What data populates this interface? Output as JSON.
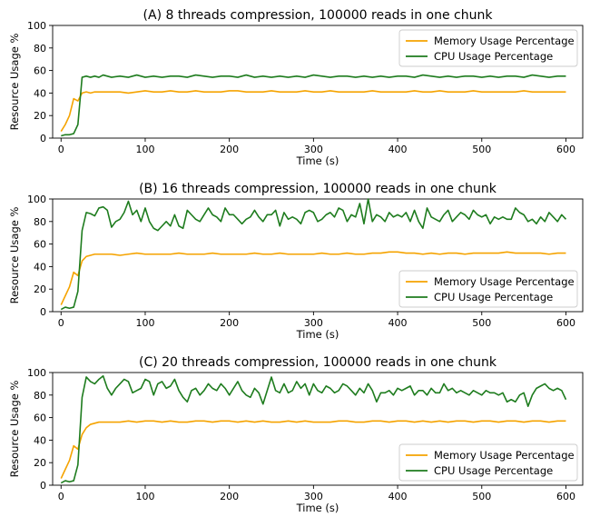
{
  "colors": {
    "memory": "#f5a300",
    "cpu": "#1e7c1e"
  },
  "chart_data": [
    {
      "type": "line",
      "title": "(A) 8 threads compression, 100000 reads in one chunk",
      "xlabel": "Time (s)",
      "ylabel": "Resource Usage %",
      "xlim": [
        -10,
        620
      ],
      "ylim": [
        0,
        100
      ],
      "xticks": [
        0,
        100,
        200,
        300,
        400,
        500,
        600
      ],
      "yticks": [
        0,
        20,
        40,
        60,
        80,
        100
      ],
      "grid": false,
      "legend": "top-right",
      "series": [
        {
          "name": "Memory Usage Percentage",
          "color": "memory",
          "x": [
            0,
            5,
            10,
            15,
            20,
            25,
            30,
            35,
            40,
            45,
            50,
            60,
            70,
            80,
            90,
            100,
            110,
            120,
            130,
            140,
            150,
            160,
            170,
            180,
            190,
            200,
            210,
            220,
            230,
            240,
            250,
            260,
            270,
            280,
            290,
            300,
            310,
            320,
            330,
            340,
            350,
            360,
            370,
            380,
            390,
            400,
            410,
            420,
            430,
            440,
            450,
            460,
            470,
            480,
            490,
            500,
            510,
            520,
            530,
            540,
            550,
            560,
            570,
            580,
            590,
            600
          ],
          "y": [
            6,
            12,
            20,
            35,
            33,
            40,
            41,
            40,
            41,
            41,
            41,
            41,
            41,
            40,
            41,
            42,
            41,
            41,
            42,
            41,
            41,
            42,
            41,
            41,
            41,
            42,
            42,
            41,
            41,
            41,
            42,
            41,
            41,
            41,
            42,
            41,
            41,
            42,
            41,
            41,
            41,
            41,
            42,
            41,
            41,
            41,
            41,
            42,
            41,
            41,
            42,
            41,
            41,
            41,
            42,
            41,
            41,
            41,
            41,
            41,
            42,
            41,
            41,
            41,
            41,
            41
          ]
        },
        {
          "name": "CPU Usage Percentage",
          "color": "cpu",
          "x": [
            0,
            5,
            10,
            15,
            20,
            25,
            30,
            35,
            40,
            45,
            50,
            60,
            70,
            80,
            90,
            100,
            110,
            120,
            130,
            140,
            150,
            160,
            170,
            180,
            190,
            200,
            210,
            220,
            230,
            240,
            250,
            260,
            270,
            280,
            290,
            300,
            310,
            320,
            330,
            340,
            350,
            360,
            370,
            380,
            390,
            400,
            410,
            420,
            430,
            440,
            450,
            460,
            470,
            480,
            490,
            500,
            510,
            520,
            530,
            540,
            550,
            560,
            570,
            580,
            590,
            600
          ],
          "y": [
            2,
            3,
            3,
            4,
            12,
            54,
            55,
            54,
            55,
            54,
            56,
            54,
            55,
            54,
            56,
            54,
            55,
            54,
            55,
            55,
            54,
            56,
            55,
            54,
            55,
            55,
            54,
            56,
            54,
            55,
            54,
            55,
            54,
            55,
            54,
            56,
            55,
            54,
            55,
            55,
            54,
            55,
            54,
            55,
            54,
            55,
            55,
            54,
            56,
            55,
            54,
            55,
            54,
            55,
            55,
            54,
            55,
            54,
            55,
            55,
            54,
            56,
            55,
            54,
            55,
            55
          ]
        }
      ]
    },
    {
      "type": "line",
      "title": "(B) 16 threads compression, 100000 reads in one chunk",
      "xlabel": "Time (s)",
      "ylabel": "Resource Usage %",
      "xlim": [
        -10,
        620
      ],
      "ylim": [
        0,
        100
      ],
      "xticks": [
        0,
        100,
        200,
        300,
        400,
        500,
        600
      ],
      "yticks": [
        0,
        20,
        40,
        60,
        80,
        100
      ],
      "grid": false,
      "legend": "bottom-right",
      "series": [
        {
          "name": "Memory Usage Percentage",
          "color": "memory",
          "x": [
            0,
            5,
            10,
            15,
            20,
            25,
            30,
            35,
            40,
            45,
            50,
            60,
            70,
            80,
            90,
            100,
            110,
            120,
            130,
            140,
            150,
            160,
            170,
            180,
            190,
            200,
            210,
            220,
            230,
            240,
            250,
            260,
            270,
            280,
            290,
            300,
            310,
            320,
            330,
            340,
            350,
            360,
            370,
            380,
            390,
            400,
            410,
            420,
            430,
            440,
            450,
            460,
            470,
            480,
            490,
            500,
            510,
            520,
            530,
            540,
            550,
            560,
            570,
            580,
            590,
            600
          ],
          "y": [
            6,
            14,
            22,
            35,
            32,
            45,
            49,
            50,
            51,
            51,
            51,
            51,
            50,
            51,
            52,
            51,
            51,
            51,
            51,
            52,
            51,
            51,
            51,
            52,
            51,
            51,
            51,
            51,
            52,
            51,
            51,
            52,
            51,
            51,
            51,
            51,
            52,
            51,
            51,
            52,
            51,
            51,
            52,
            52,
            53,
            53,
            52,
            52,
            51,
            52,
            51,
            52,
            52,
            51,
            52,
            52,
            52,
            52,
            53,
            52,
            52,
            52,
            52,
            51,
            52,
            52
          ]
        },
        {
          "name": "CPU Usage Percentage",
          "color": "cpu",
          "x": [
            0,
            5,
            10,
            15,
            20,
            25,
            30,
            35,
            40,
            45,
            50,
            55,
            60,
            65,
            70,
            75,
            80,
            85,
            90,
            95,
            100,
            105,
            110,
            115,
            120,
            125,
            130,
            135,
            140,
            145,
            150,
            155,
            160,
            165,
            170,
            175,
            180,
            185,
            190,
            195,
            200,
            205,
            210,
            215,
            220,
            225,
            230,
            235,
            240,
            245,
            250,
            255,
            260,
            265,
            270,
            275,
            280,
            285,
            290,
            295,
            300,
            305,
            310,
            315,
            320,
            325,
            330,
            335,
            340,
            345,
            350,
            355,
            360,
            365,
            370,
            375,
            380,
            385,
            390,
            395,
            400,
            405,
            410,
            415,
            420,
            425,
            430,
            435,
            440,
            445,
            450,
            455,
            460,
            465,
            470,
            475,
            480,
            485,
            490,
            495,
            500,
            505,
            510,
            515,
            520,
            525,
            530,
            535,
            540,
            545,
            550,
            555,
            560,
            565,
            570,
            575,
            580,
            585,
            590,
            595,
            600
          ],
          "y": [
            2,
            4,
            3,
            4,
            18,
            72,
            88,
            87,
            85,
            92,
            93,
            90,
            75,
            80,
            82,
            88,
            98,
            86,
            90,
            80,
            92,
            80,
            74,
            72,
            76,
            80,
            76,
            86,
            76,
            74,
            90,
            86,
            82,
            80,
            86,
            92,
            86,
            84,
            80,
            92,
            86,
            86,
            82,
            78,
            82,
            84,
            90,
            84,
            80,
            86,
            86,
            90,
            76,
            88,
            82,
            84,
            82,
            78,
            88,
            90,
            88,
            80,
            82,
            86,
            88,
            84,
            92,
            90,
            80,
            86,
            84,
            96,
            78,
            100,
            80,
            86,
            84,
            80,
            88,
            84,
            86,
            84,
            88,
            80,
            90,
            80,
            74,
            92,
            84,
            82,
            80,
            86,
            90,
            80,
            84,
            88,
            86,
            82,
            90,
            86,
            84,
            86,
            78,
            84,
            82,
            84,
            82,
            82,
            92,
            88,
            86,
            80,
            82,
            78,
            84,
            80,
            88,
            84,
            80,
            86,
            82
          ]
        }
      ]
    },
    {
      "type": "line",
      "title": "(C) 20 threads compression, 100000 reads in one chunk",
      "xlabel": "Time (s)",
      "ylabel": "Resource Usage %",
      "xlim": [
        -10,
        620
      ],
      "ylim": [
        0,
        100
      ],
      "xticks": [
        0,
        100,
        200,
        300,
        400,
        500,
        600
      ],
      "yticks": [
        0,
        20,
        40,
        60,
        80,
        100
      ],
      "grid": false,
      "legend": "bottom-right",
      "series": [
        {
          "name": "Memory Usage Percentage",
          "color": "memory",
          "x": [
            0,
            5,
            10,
            15,
            20,
            25,
            30,
            35,
            40,
            45,
            50,
            60,
            70,
            80,
            90,
            100,
            110,
            120,
            130,
            140,
            150,
            160,
            170,
            180,
            190,
            200,
            210,
            220,
            230,
            240,
            250,
            260,
            270,
            280,
            290,
            300,
            310,
            320,
            330,
            340,
            350,
            360,
            370,
            380,
            390,
            400,
            410,
            420,
            430,
            440,
            450,
            460,
            470,
            480,
            490,
            500,
            510,
            520,
            530,
            540,
            550,
            560,
            570,
            580,
            590,
            600
          ],
          "y": [
            6,
            14,
            22,
            35,
            32,
            45,
            51,
            54,
            55,
            56,
            56,
            56,
            56,
            57,
            56,
            57,
            57,
            56,
            57,
            56,
            56,
            57,
            57,
            56,
            57,
            57,
            56,
            57,
            56,
            57,
            56,
            56,
            57,
            56,
            57,
            56,
            56,
            56,
            57,
            57,
            56,
            56,
            57,
            57,
            56,
            57,
            57,
            56,
            57,
            56,
            57,
            56,
            57,
            57,
            56,
            57,
            57,
            56,
            57,
            57,
            56,
            57,
            57,
            56,
            57,
            57
          ]
        },
        {
          "name": "CPU Usage Percentage",
          "color": "cpu",
          "x": [
            0,
            5,
            10,
            15,
            20,
            25,
            30,
            35,
            40,
            45,
            50,
            55,
            60,
            65,
            70,
            75,
            80,
            85,
            90,
            95,
            100,
            105,
            110,
            115,
            120,
            125,
            130,
            135,
            140,
            145,
            150,
            155,
            160,
            165,
            170,
            175,
            180,
            185,
            190,
            195,
            200,
            205,
            210,
            215,
            220,
            225,
            230,
            235,
            240,
            245,
            250,
            255,
            260,
            265,
            270,
            275,
            280,
            285,
            290,
            295,
            300,
            305,
            310,
            315,
            320,
            325,
            330,
            335,
            340,
            345,
            350,
            355,
            360,
            365,
            370,
            375,
            380,
            385,
            390,
            395,
            400,
            405,
            410,
            415,
            420,
            425,
            430,
            435,
            440,
            445,
            450,
            455,
            460,
            465,
            470,
            475,
            480,
            485,
            490,
            495,
            500,
            505,
            510,
            515,
            520,
            525,
            530,
            535,
            540,
            545,
            550,
            555,
            560,
            565,
            570,
            575,
            580,
            585,
            590,
            595,
            600
          ],
          "y": [
            2,
            4,
            3,
            4,
            18,
            78,
            96,
            92,
            90,
            94,
            97,
            86,
            80,
            86,
            90,
            94,
            92,
            82,
            84,
            86,
            94,
            92,
            80,
            90,
            92,
            86,
            88,
            94,
            84,
            78,
            74,
            84,
            86,
            80,
            84,
            90,
            86,
            84,
            90,
            86,
            80,
            86,
            92,
            84,
            80,
            78,
            86,
            82,
            72,
            84,
            96,
            84,
            82,
            90,
            82,
            84,
            92,
            86,
            90,
            80,
            90,
            84,
            82,
            88,
            86,
            82,
            84,
            90,
            88,
            84,
            80,
            86,
            82,
            90,
            84,
            74,
            82,
            82,
            84,
            80,
            86,
            84,
            86,
            88,
            80,
            84,
            84,
            80,
            86,
            82,
            82,
            90,
            84,
            86,
            82,
            84,
            82,
            80,
            84,
            82,
            80,
            84,
            82,
            82,
            80,
            82,
            74,
            76,
            74,
            80,
            82,
            70,
            80,
            86,
            88,
            90,
            86,
            84,
            86,
            84,
            76
          ]
        }
      ]
    }
  ]
}
